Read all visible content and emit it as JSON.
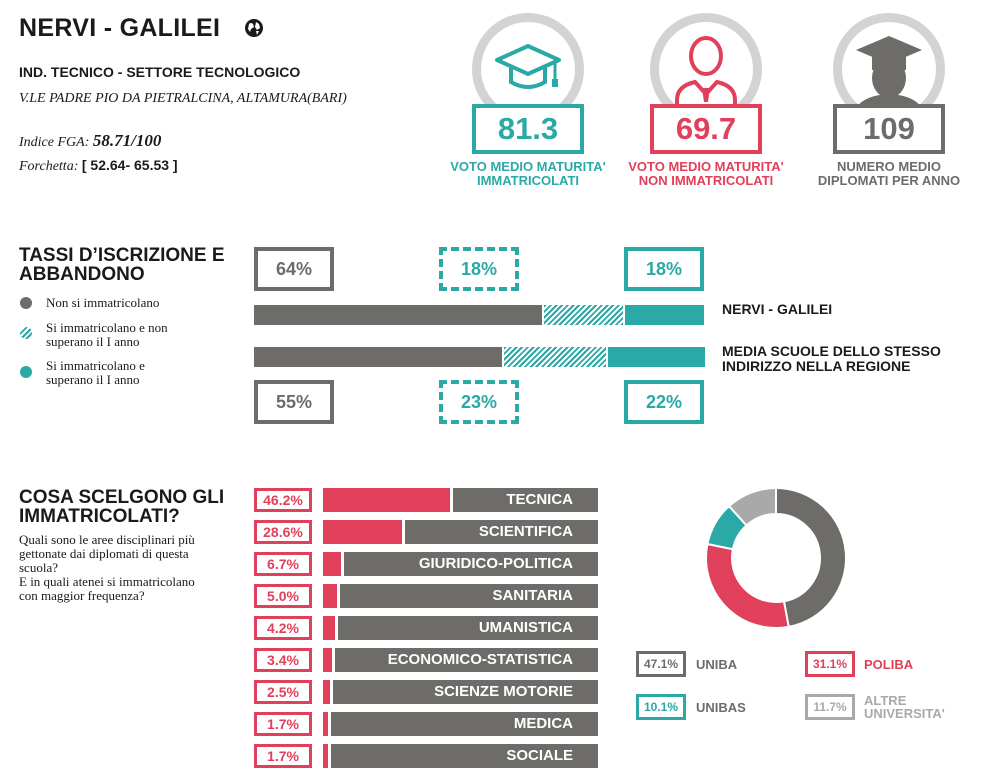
{
  "colors": {
    "dark": "#6e6c68",
    "teal": "#2aa9a6",
    "red": "#e0405a",
    "grey": "#a9a9a9",
    "ring": "#d3d3d3"
  },
  "header": {
    "name": "NERVI - GALILEI",
    "globe_icon": "globe-icon",
    "type": "IND. TECNICO - SETTORE TECNOLOGICO",
    "address": "V.LE PADRE PIO DA PIETRALCINA, ALTAMURA(BARI)",
    "fga_label": "Indice FGA:",
    "fga_value": "58.71/100",
    "fork_label": "Forchetta:",
    "fork_value": "[ 52.64- 65.53 ]"
  },
  "kpis": [
    {
      "value": "81.3",
      "label1": "VOTO MEDIO MATURITA'",
      "label2": "IMMATRICOLATI",
      "icon": "graduation-cap-icon"
    },
    {
      "value": "69.7",
      "label1": "VOTO MEDIO MATURITA'",
      "label2": "NON IMMATRICOLATI",
      "icon": "person-icon"
    },
    {
      "value": "109",
      "label1": "NUMERO MEDIO",
      "label2": "DIPLOMATI PER ANNO",
      "icon": "graduate-icon"
    }
  ],
  "rates": {
    "title1": "TASSI D’ISCRIZIONE E",
    "title2": "ABBANDONO",
    "legend": [
      {
        "text1": "Non si immatricolano",
        "text2": ""
      },
      {
        "text1": "Si immatricolano e non",
        "text2": "superano il I anno"
      },
      {
        "text1": "Si immatricolano e",
        "text2": "superano il I anno"
      }
    ]
  },
  "chart_data": [
    {
      "type": "bar",
      "stacked": true,
      "categories": [
        "NERVI - GALILEI",
        "MEDIA SCUOLE DELLO STESSO INDIRIZZO NELLA REGIONE"
      ],
      "category_lines": [
        [
          "NERVI - GALILEI"
        ],
        [
          "MEDIA SCUOLE DELLO STESSO",
          "INDIRIZZO NELLA REGIONE"
        ]
      ],
      "series": [
        {
          "name": "Non si immatricolano",
          "values": [
            64,
            55
          ],
          "labels": [
            "64%",
            "55%"
          ]
        },
        {
          "name": "Si immatricolano e non superano il I anno",
          "values": [
            18,
            23
          ],
          "labels": [
            "18%",
            "23%"
          ]
        },
        {
          "name": "Si immatricolano e superano il I anno",
          "values": [
            18,
            22
          ],
          "labels": [
            "18%",
            "22%"
          ]
        }
      ],
      "xlim": [
        0,
        100
      ]
    },
    {
      "type": "bar",
      "title": "COSA SCELGONO GLI IMMATRICOLATI?",
      "categories": [
        "TECNICA",
        "SCIENTIFICA",
        "GIURIDICO-POLITICA",
        "SANITARIA",
        "UMANISTICA",
        "ECONOMICO-STATISTICA",
        "SCIENZE MOTORIE",
        "MEDICA",
        "SOCIALE"
      ],
      "values": [
        46.2,
        28.6,
        6.7,
        5.0,
        4.2,
        3.4,
        2.5,
        1.7,
        1.7
      ],
      "labels": [
        "46.2%",
        "28.6%",
        "6.7%",
        "5.0%",
        "4.2%",
        "3.4%",
        "2.5%",
        "1.7%",
        "1.7%"
      ],
      "xlim": [
        0,
        100
      ]
    },
    {
      "type": "pie",
      "donut": true,
      "categories": [
        "UNIBA",
        "POLIBA",
        "UNIBAS",
        "ALTRE UNIVERSITA'"
      ],
      "category_lines": [
        [
          "UNIBA"
        ],
        [
          "POLIBA"
        ],
        [
          "UNIBAS"
        ],
        [
          "ALTRE",
          "UNIVERSITA'"
        ]
      ],
      "values": [
        47.1,
        31.1,
        10.1,
        11.7
      ],
      "labels": [
        "47.1%",
        "31.1%",
        "10.1%",
        "11.7%"
      ],
      "colors": [
        "#6e6c68",
        "#e0405a",
        "#2aa9a6",
        "#a9a9a9"
      ]
    }
  ],
  "choices": {
    "title1": "COSA SCELGONO GLI",
    "title2": "IMMATRICOLATI?",
    "desc": [
      "Quali sono le aree disciplinari più",
      "gettonate dai diplomati di questa",
      "scuola?",
      "E in quali atenei si immatricolano",
      "con maggior frequenza?"
    ]
  }
}
